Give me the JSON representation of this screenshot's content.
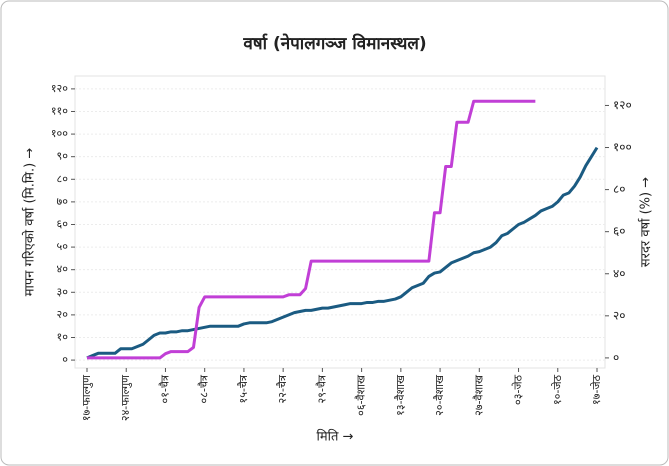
{
  "chart_data": {
    "type": "line",
    "title": "वर्षा (नेपालगञ्ज विमानस्थल)",
    "xlabel": "मिति →",
    "ylabel": "मापन गरिएको वर्षा (मि.मि.) →",
    "y2label": "सरदर वर्षा (%) →",
    "categories": [
      "१७-फाल्गुण",
      null,
      null,
      null,
      null,
      null,
      null,
      "२४-फाल्गुण",
      null,
      null,
      null,
      null,
      null,
      null,
      "०१-चैत्र",
      null,
      null,
      null,
      null,
      null,
      null,
      "०८-चैत्र",
      null,
      null,
      null,
      null,
      null,
      null,
      "१५-चैत्र",
      null,
      null,
      null,
      null,
      null,
      null,
      "२२-चैत्र",
      null,
      null,
      null,
      null,
      null,
      null,
      "२९-चैत्र",
      null,
      null,
      null,
      null,
      null,
      null,
      "०६-वैशाख",
      null,
      null,
      null,
      null,
      null,
      null,
      "१३-वैशाख",
      null,
      null,
      null,
      null,
      null,
      null,
      "२०-वैशाख",
      null,
      null,
      null,
      null,
      null,
      null,
      "२७-वैशाख",
      null,
      null,
      null,
      null,
      null,
      null,
      "०३-जेठ",
      null,
      null,
      null,
      null,
      null,
      null,
      "१०-जेठ",
      null,
      null,
      null,
      null,
      null,
      null,
      "१७-जेठ"
    ],
    "series": [
      {
        "color": "#1b5b82",
        "axis": "y",
        "values": [
          1,
          2,
          3,
          3,
          3,
          3,
          5,
          5,
          5,
          6,
          7,
          9,
          11,
          12,
          12,
          12.5,
          12.5,
          13,
          13,
          13.5,
          14,
          14.5,
          15,
          15,
          15,
          15,
          15,
          15,
          16,
          16.5,
          16.5,
          16.5,
          16.5,
          17,
          18,
          19,
          20,
          21,
          21.5,
          22,
          22,
          22.5,
          23,
          23,
          23.5,
          24,
          24.5,
          25,
          25,
          25,
          25.5,
          25.5,
          26,
          26,
          26.5,
          27,
          28,
          30,
          32,
          33,
          34,
          37,
          38.5,
          39,
          41,
          43,
          44,
          45,
          46,
          47.5,
          48,
          49,
          50,
          52,
          55,
          56,
          58,
          60,
          61,
          62.5,
          64,
          66,
          67,
          68,
          70,
          73,
          74,
          77,
          81,
          86,
          90,
          94
        ]
      },
      {
        "color": "#c13fd6",
        "axis": "y2",
        "values": [
          0,
          0,
          0,
          0,
          0,
          0,
          0,
          0,
          0,
          0,
          0,
          0,
          0,
          0,
          2,
          3,
          3,
          3,
          3,
          5,
          24,
          29,
          29,
          29,
          29,
          29,
          29,
          29,
          29,
          29,
          29,
          29,
          29,
          29,
          29,
          29,
          30,
          30,
          30,
          33,
          46,
          46,
          46,
          46,
          46,
          46,
          46,
          46,
          46,
          46,
          46,
          46,
          46,
          46,
          46,
          46,
          46,
          46,
          46,
          46,
          46,
          46,
          69,
          69,
          91,
          91,
          112,
          112,
          112,
          122,
          122,
          122,
          122,
          122,
          122,
          122,
          122,
          122,
          122,
          122,
          122,
          null,
          null,
          null,
          null,
          null,
          null,
          null,
          null,
          null,
          null,
          null
        ]
      }
    ],
    "ylim": [
      -3.5,
      125.7
    ],
    "yticks": [
      {
        "value": 0,
        "label": "०"
      },
      {
        "value": 10,
        "label": "१०"
      },
      {
        "value": 20,
        "label": "२०"
      },
      {
        "value": 30,
        "label": "३०"
      },
      {
        "value": 40,
        "label": "४०"
      },
      {
        "value": 50,
        "label": "५०"
      },
      {
        "value": 60,
        "label": "६०"
      },
      {
        "value": 70,
        "label": "७०"
      },
      {
        "value": 80,
        "label": "८०"
      },
      {
        "value": 90,
        "label": "९०"
      },
      {
        "value": 100,
        "label": "१००"
      },
      {
        "value": 110,
        "label": "११०"
      },
      {
        "value": 120,
        "label": "१२०"
      }
    ],
    "y2lim": [
      -4.8,
      134
    ],
    "y2ticks": [
      {
        "value": 0,
        "label": "०"
      },
      {
        "value": 20,
        "label": "२०"
      },
      {
        "value": 40,
        "label": "४०"
      },
      {
        "value": 60,
        "label": "६०"
      },
      {
        "value": 80,
        "label": "८०"
      },
      {
        "value": 100,
        "label": "१००"
      },
      {
        "value": 120,
        "label": "१२०"
      }
    ],
    "grid": true
  }
}
